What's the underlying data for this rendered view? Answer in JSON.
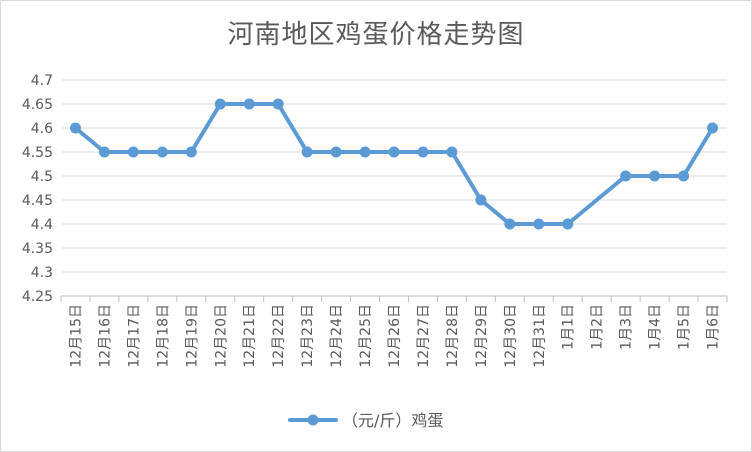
{
  "chart_data": {
    "type": "line",
    "title": "河南地区鸡蛋价格走势图",
    "categories": [
      "12月15日",
      "12月16日",
      "12月17日",
      "12月18日",
      "12月19日",
      "12月20日",
      "12月21日",
      "12月22日",
      "12月23日",
      "12月24日",
      "12月25日",
      "12月26日",
      "12月27日",
      "12月28日",
      "12月29日",
      "12月30日",
      "12月31日",
      "1月1日",
      "1月2日",
      "1月3日",
      "1月4日",
      "1月5日",
      "1月6日"
    ],
    "series": [
      {
        "name": "（元/斤）鸡蛋",
        "color": "#5b9bd5",
        "values": [
          4.6,
          4.55,
          4.55,
          4.55,
          4.55,
          4.65,
          4.65,
          4.65,
          4.55,
          4.55,
          4.55,
          4.55,
          4.55,
          4.55,
          4.45,
          4.4,
          4.4,
          4.4,
          null,
          4.5,
          4.5,
          4.5,
          4.6
        ]
      }
    ],
    "yticks": [
      "4.25",
      "4.3",
      "4.35",
      "4.4",
      "4.45",
      "4.5",
      "4.55",
      "4.6",
      "4.65",
      "4.7"
    ],
    "ylim": [
      4.25,
      4.7
    ],
    "grid": true,
    "legend": "bottom",
    "xlabel": "",
    "ylabel": ""
  }
}
